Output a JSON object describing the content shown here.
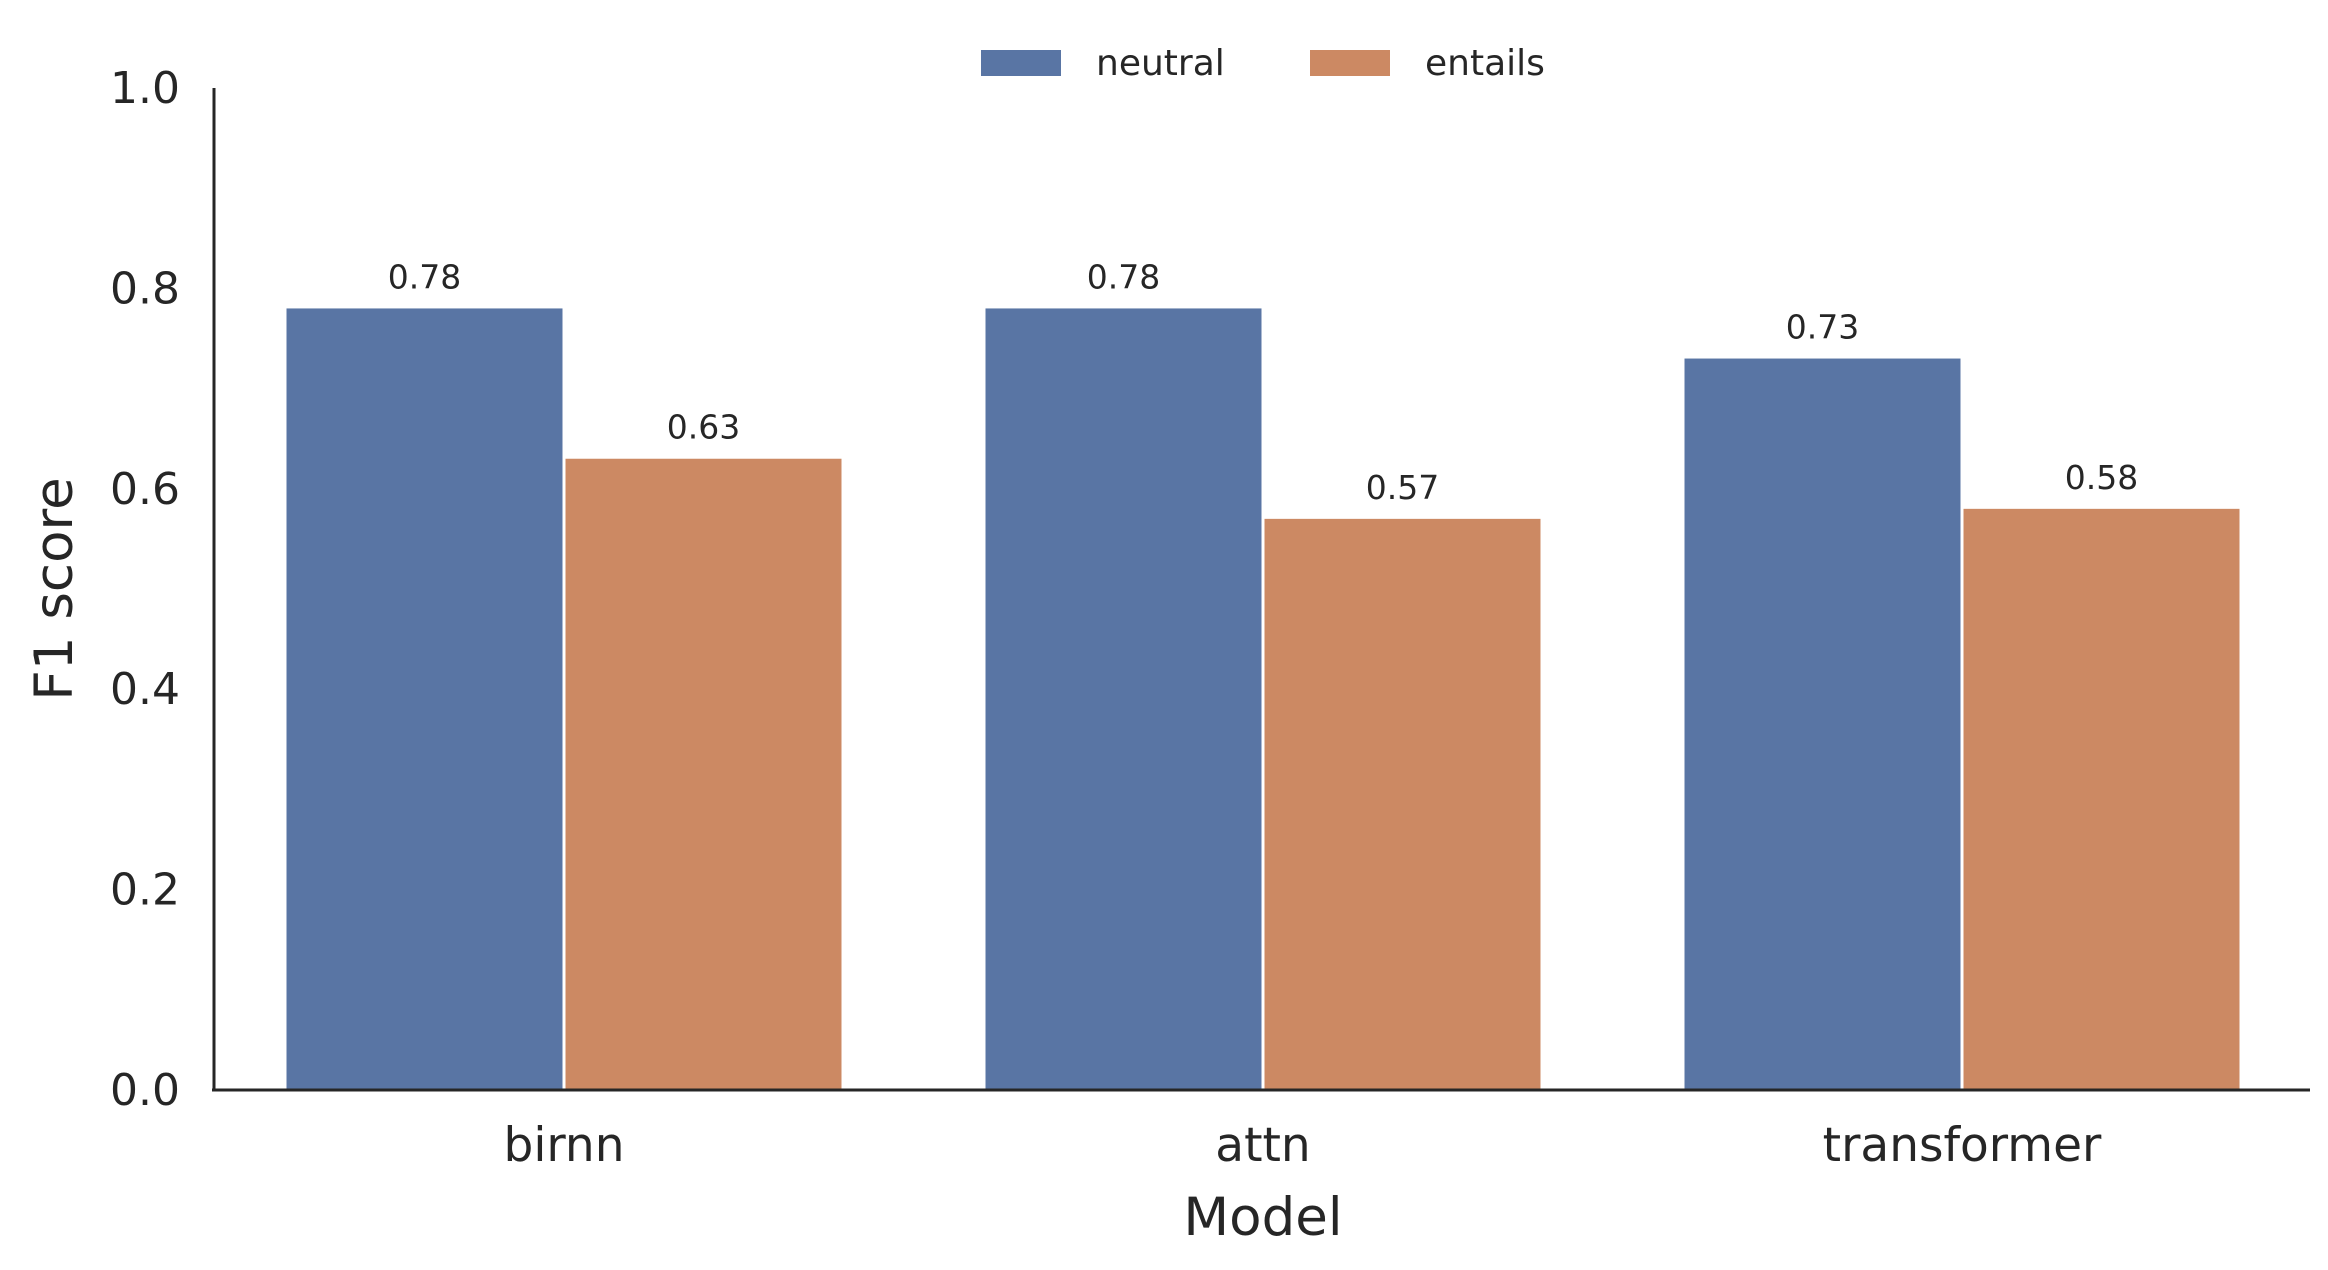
{
  "chart_data": {
    "type": "bar",
    "title": "",
    "xlabel": "Model",
    "ylabel": "F1 score",
    "ylim": [
      0,
      1.0
    ],
    "yticks": [
      "0.0",
      "0.2",
      "0.4",
      "0.6",
      "0.8",
      "1.0"
    ],
    "categories": [
      "birnn",
      "attn",
      "transformer"
    ],
    "series": [
      {
        "name": "neutral",
        "color": "#5975a4",
        "values": [
          0.78,
          0.78,
          0.73
        ],
        "labels": [
          "0.78",
          "0.78",
          "0.73"
        ]
      },
      {
        "name": "entails",
        "color": "#cc8963",
        "values": [
          0.63,
          0.57,
          0.58
        ],
        "labels": [
          "0.63",
          "0.57",
          "0.58"
        ]
      }
    ],
    "legend_position": "top-center",
    "grid": false
  }
}
